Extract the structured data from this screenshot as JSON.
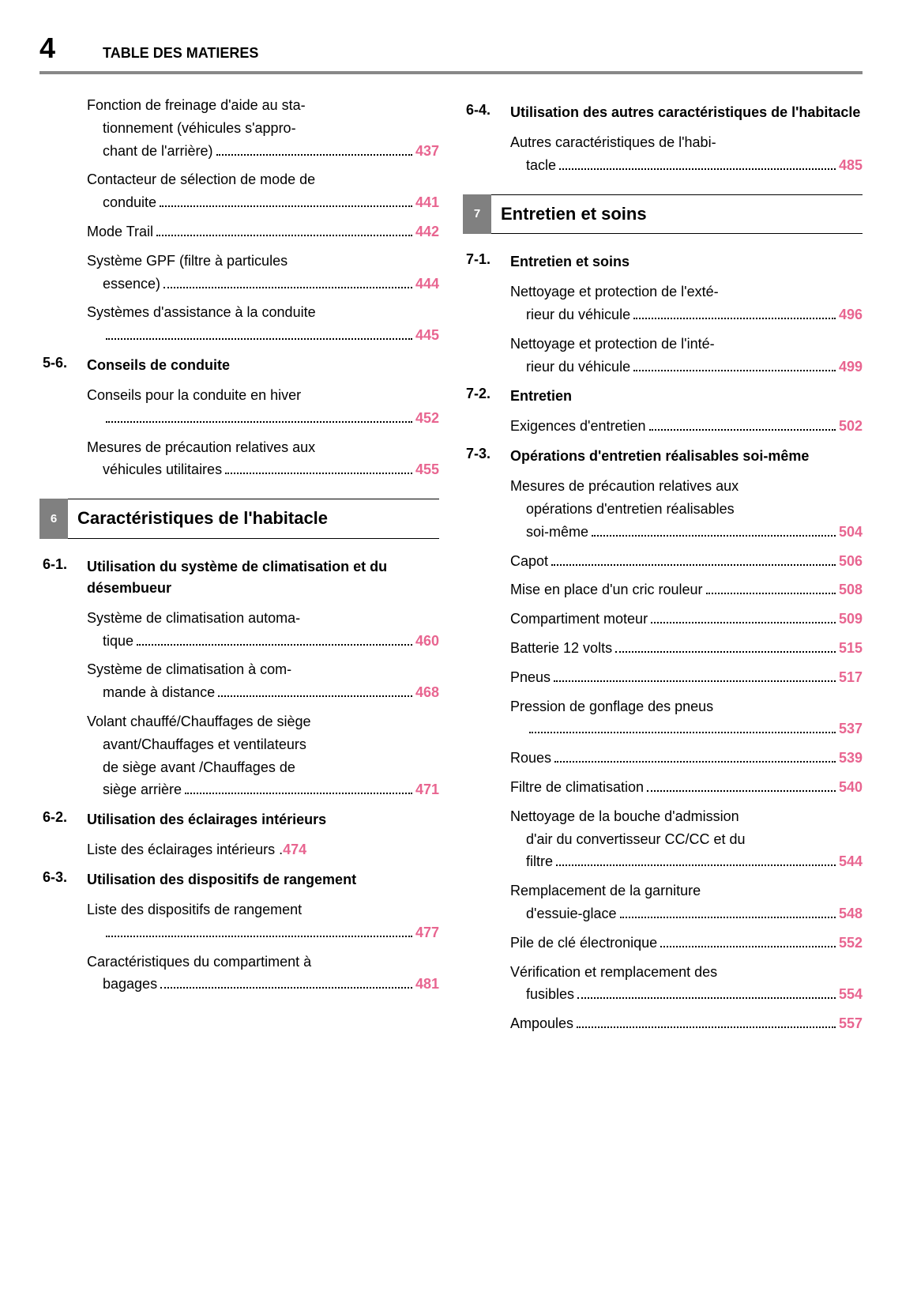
{
  "header": {
    "page_number": "4",
    "title": "TABLE DES MATIERES"
  },
  "colors": {
    "page_ref": "#e86590",
    "rule": "#888888",
    "chapter_num_bg": "#808080"
  },
  "left_col": {
    "initial_entries": [
      {
        "lines": [
          "Fonction de freinage d'aide au sta-",
          "tionnement (véhicules s'appro-"
        ],
        "last": "chant de l'arrière)",
        "page": "437"
      },
      {
        "lines": [
          "Contacteur de sélection de mode de"
        ],
        "last": "conduite",
        "page": "441"
      },
      {
        "lines": [],
        "last": "Mode Trail",
        "page": "442"
      },
      {
        "lines": [
          "Système GPF (filtre à particules"
        ],
        "last": "essence)",
        "page": "444"
      },
      {
        "lines": [
          "Systèmes d'assistance à la conduite"
        ],
        "last": "",
        "page": "445"
      }
    ],
    "sec56": {
      "num": "5-6.",
      "label": "Conseils de conduite",
      "entries": [
        {
          "lines": [
            "Conseils pour la conduite en hiver"
          ],
          "last": "",
          "page": "452"
        },
        {
          "lines": [
            "Mesures de précaution relatives aux"
          ],
          "last": "véhicules utilitaires",
          "page": "455"
        }
      ]
    },
    "chapter6": {
      "num": "6",
      "title": "Caractéristiques de l'habitacle"
    },
    "sec61": {
      "num": "6-1.",
      "label": "Utilisation du système de climatisation et du désembueur",
      "entries": [
        {
          "lines": [
            "Système de climatisation automa-"
          ],
          "last": "tique",
          "page": "460"
        },
        {
          "lines": [
            "Système de climatisation à com-"
          ],
          "last": "mande à distance",
          "page": "468"
        },
        {
          "lines": [
            "Volant chauffé/Chauffages de siège",
            "avant/Chauffages et ventilateurs",
            "de siège avant /Chauffages de"
          ],
          "last": "siège arrière",
          "page": "471"
        }
      ]
    },
    "sec62": {
      "num": "6-2.",
      "label": "Utilisation des éclairages intérieurs",
      "entries": [
        {
          "lines": [],
          "last": "Liste des éclairages intérieurs .",
          "page": "474",
          "nodots": true
        }
      ]
    },
    "sec63": {
      "num": "6-3.",
      "label": "Utilisation des dispositifs de rangement",
      "entries": [
        {
          "lines": [
            "Liste des dispositifs de rangement"
          ],
          "last": "",
          "page": "477"
        },
        {
          "lines": [
            "Caractéristiques du compartiment à"
          ],
          "last": "bagages",
          "page": "481"
        }
      ]
    }
  },
  "right_col": {
    "sec64": {
      "num": "6-4.",
      "label": "Utilisation des autres caractéristiques de l'habitacle",
      "entries": [
        {
          "lines": [
            "Autres caractéristiques de l'habi-"
          ],
          "last": "tacle",
          "page": "485"
        }
      ]
    },
    "chapter7": {
      "num": "7",
      "title": "Entretien et soins"
    },
    "sec71": {
      "num": "7-1.",
      "label": "Entretien et soins",
      "entries": [
        {
          "lines": [
            "Nettoyage et protection de l'exté-"
          ],
          "last": "rieur du véhicule",
          "page": "496"
        },
        {
          "lines": [
            "Nettoyage et protection de l'inté-"
          ],
          "last": "rieur du véhicule",
          "page": "499"
        }
      ]
    },
    "sec72": {
      "num": "7-2.",
      "label": "Entretien",
      "entries": [
        {
          "lines": [],
          "last": "Exigences d'entretien",
          "page": "502"
        }
      ]
    },
    "sec73": {
      "num": "7-3.",
      "label": "Opérations d'entretien réalisables soi-même",
      "entries": [
        {
          "lines": [
            "Mesures de précaution relatives aux",
            "opérations d'entretien réalisables"
          ],
          "last": "soi-même",
          "page": "504"
        },
        {
          "lines": [],
          "last": "Capot",
          "page": "506"
        },
        {
          "lines": [],
          "last": "Mise en place d'un cric rouleur",
          "page": "508"
        },
        {
          "lines": [],
          "last": "Compartiment moteur",
          "page": "509"
        },
        {
          "lines": [],
          "last": "Batterie 12 volts",
          "page": "515"
        },
        {
          "lines": [],
          "last": "Pneus",
          "page": "517"
        },
        {
          "lines": [
            "Pression de gonflage des pneus"
          ],
          "last": "",
          "page": "537"
        },
        {
          "lines": [],
          "last": "Roues",
          "page": "539"
        },
        {
          "lines": [],
          "last": "Filtre de climatisation",
          "page": "540"
        },
        {
          "lines": [
            "Nettoyage de la bouche d'admission",
            "d'air du convertisseur CC/CC et du"
          ],
          "last": "filtre",
          "page": "544"
        },
        {
          "lines": [
            "Remplacement de la garniture"
          ],
          "last": "d'essuie-glace",
          "page": "548"
        },
        {
          "lines": [],
          "last": "Pile de clé électronique",
          "page": "552"
        },
        {
          "lines": [
            "Vérification et remplacement des"
          ],
          "last": "fusibles",
          "page": "554"
        },
        {
          "lines": [],
          "last": "Ampoules",
          "page": "557"
        }
      ]
    }
  }
}
